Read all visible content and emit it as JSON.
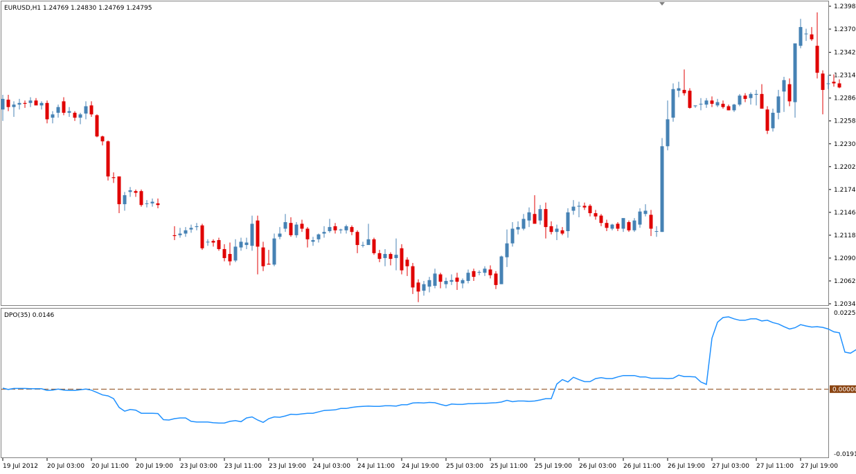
{
  "colors": {
    "background": "#ffffff",
    "frame": "#808080",
    "bull": "#4682b4",
    "bear": "#e00000",
    "dpo_line": "#1e90ff",
    "zero_line": "#8b4513",
    "zero_badge": "#8b4513"
  },
  "chart_data": [
    {
      "type": "candlestick",
      "title": "EURUSD,H1  1.24769 1.24830 1.24769 1.24795",
      "symbol": "EURUSD,H1",
      "ohlc_header": "1.24769 1.24830 1.24769 1.24795",
      "ylim": [
        1.2034,
        1.23985
      ],
      "y_ticks": [
        "1.23985",
        "1.23705",
        "1.23420",
        "1.23140",
        "1.22860",
        "1.22580",
        "1.22300",
        "1.22020",
        "1.21740",
        "1.21460",
        "1.21180",
        "1.20900",
        "1.20620",
        "1.20340"
      ],
      "grid": false,
      "candles": [
        [
          1.2272,
          1.229,
          1.2258,
          1.2285
        ],
        [
          1.2284,
          1.229,
          1.227,
          1.2275
        ],
        [
          1.2275,
          1.2282,
          1.2263,
          1.2278
        ],
        [
          1.2278,
          1.2285,
          1.2272,
          1.228
        ],
        [
          1.228,
          1.2283,
          1.2274,
          1.2279
        ],
        [
          1.228,
          1.2287,
          1.2275,
          1.2283
        ],
        [
          1.2283,
          1.2286,
          1.2278,
          1.2277
        ],
        [
          1.2277,
          1.2282,
          1.2272,
          1.228
        ],
        [
          1.228,
          1.2283,
          1.2255,
          1.226
        ],
        [
          1.2262,
          1.227,
          1.2255,
          1.2266
        ],
        [
          1.2268,
          1.2278,
          1.2262,
          1.2275
        ],
        [
          1.2282,
          1.2287,
          1.2265,
          1.2268
        ],
        [
          1.2268,
          1.2275,
          1.2263,
          1.227
        ],
        [
          1.2268,
          1.227,
          1.2258,
          1.2262
        ],
        [
          1.2262,
          1.2268,
          1.2254,
          1.2266
        ],
        [
          1.2267,
          1.2282,
          1.226,
          1.2276
        ],
        [
          1.2277,
          1.2282,
          1.2263,
          1.2266
        ],
        [
          1.2265,
          1.2266,
          1.2238,
          1.2239
        ],
        [
          1.2239,
          1.224,
          1.2228,
          1.2233
        ],
        [
          1.2233,
          1.2234,
          1.2185,
          1.219
        ],
        [
          1.2189,
          1.2195,
          1.2182,
          1.2188
        ],
        [
          1.219,
          1.219,
          1.2145,
          1.2156
        ],
        [
          1.2156,
          1.2171,
          1.2148,
          1.2167
        ],
        [
          1.2171,
          1.2177,
          1.2165,
          1.2173
        ],
        [
          1.2172,
          1.2174,
          1.2165,
          1.217
        ],
        [
          1.2172,
          1.2174,
          1.2153,
          1.2155
        ],
        [
          1.2157,
          1.2161,
          1.2152,
          1.2157
        ],
        [
          1.2157,
          1.2163,
          1.2153,
          1.2159
        ],
        [
          1.2157,
          1.2163,
          1.2151,
          1.2155
        ],
        null,
        null,
        [
          1.2118,
          1.2129,
          1.2112,
          1.2117
        ],
        [
          1.2118,
          1.2127,
          1.2115,
          1.212
        ],
        [
          1.212,
          1.2128,
          1.2116,
          1.2124
        ],
        [
          1.2125,
          1.2131,
          1.2121,
          1.2127
        ],
        [
          1.2128,
          1.2133,
          1.2124,
          1.2129
        ],
        [
          1.213,
          1.2132,
          1.21,
          1.2102
        ],
        [
          1.211,
          1.2113,
          1.2105,
          1.211
        ],
        [
          1.2111,
          1.2113,
          1.2104,
          1.2109
        ],
        [
          1.2112,
          1.2115,
          1.2099,
          1.2101
        ],
        [
          1.2101,
          1.2107,
          1.2086,
          1.209
        ],
        [
          1.2095,
          1.2109,
          1.2081,
          1.2086
        ],
        [
          1.2087,
          1.2113,
          1.2085,
          1.2104
        ],
        [
          1.2103,
          1.2115,
          1.2099,
          1.211
        ],
        [
          1.2106,
          1.2115,
          1.2101,
          1.2109
        ],
        [
          1.2105,
          1.2142,
          1.2099,
          1.2132
        ],
        [
          1.2136,
          1.2142,
          1.207,
          1.2104
        ],
        [
          1.2103,
          1.211,
          1.2074,
          1.208
        ],
        [
          1.2083,
          1.21,
          1.2082,
          1.2082
        ],
        [
          1.2082,
          1.212,
          1.208,
          1.2114
        ],
        [
          1.2116,
          1.2128,
          1.2113,
          1.212
        ],
        [
          1.2126,
          1.2144,
          1.2122,
          1.2134
        ],
        [
          1.2133,
          1.214,
          1.2116,
          1.2118
        ],
        [
          1.2118,
          1.2134,
          1.2115,
          1.2131
        ],
        [
          1.2132,
          1.2137,
          1.2122,
          1.2126
        ],
        [
          1.2126,
          1.2128,
          1.2103,
          1.2113
        ],
        [
          1.211,
          1.2116,
          1.2105,
          1.2112
        ],
        [
          1.2113,
          1.212,
          1.2109,
          1.2119
        ],
        [
          1.212,
          1.2129,
          1.2115,
          1.2122
        ],
        [
          1.2123,
          1.2138,
          1.2121,
          1.2128
        ],
        [
          1.2129,
          1.2133,
          1.212,
          1.2124
        ],
        [
          1.2124,
          1.2126,
          1.212,
          1.2125
        ],
        [
          1.2124,
          1.2131,
          1.212,
          1.2129
        ],
        [
          1.2128,
          1.213,
          1.2118,
          1.2122
        ],
        [
          1.2122,
          1.2124,
          1.2096,
          1.2106
        ],
        [
          1.2106,
          1.211,
          1.2103,
          1.2106
        ],
        [
          1.2106,
          1.2132,
          1.2106,
          1.2113
        ],
        [
          1.2113,
          1.2115,
          1.2094,
          1.2096
        ],
        [
          1.2096,
          1.21,
          1.2085,
          1.2089
        ],
        [
          1.209,
          1.2101,
          1.208,
          1.2095
        ],
        [
          1.2095,
          1.2097,
          1.2081,
          1.2089
        ],
        [
          1.209,
          1.2114,
          1.2075,
          1.2094
        ],
        [
          1.2102,
          1.2107,
          1.207,
          1.2075
        ],
        [
          1.2088,
          1.2091,
          1.2068,
          1.208
        ],
        [
          1.208,
          1.2084,
          1.2046,
          1.2054
        ],
        [
          1.206,
          1.2064,
          1.2036,
          1.2049
        ],
        [
          1.205,
          1.2062,
          1.2044,
          1.2058
        ],
        [
          1.2055,
          1.2067,
          1.2048,
          1.2063
        ],
        [
          1.2056,
          1.2077,
          1.2053,
          1.2071
        ],
        [
          1.207,
          1.2072,
          1.2053,
          1.2061
        ],
        [
          1.2058,
          1.2066,
          1.2053,
          1.2062
        ],
        [
          1.2061,
          1.207,
          1.2057,
          1.2063
        ],
        [
          1.2066,
          1.2072,
          1.2051,
          1.2061
        ],
        [
          1.2059,
          1.2065,
          1.2053,
          1.2063
        ],
        [
          1.2062,
          1.2076,
          1.2059,
          1.2072
        ],
        [
          1.2074,
          1.2077,
          1.2062,
          1.2067
        ],
        [
          1.2073,
          1.2075,
          1.2069,
          1.2073
        ],
        [
          1.2072,
          1.208,
          1.2068,
          1.2077
        ],
        [
          1.2076,
          1.2081,
          1.2065,
          1.2069
        ],
        [
          1.2071,
          1.2074,
          1.2052,
          1.2057
        ],
        [
          1.2058,
          1.2093,
          1.2058,
          1.2092
        ],
        [
          1.2091,
          1.2125,
          1.2079,
          1.2108
        ],
        [
          1.2108,
          1.2134,
          1.2104,
          1.2126
        ],
        [
          1.2125,
          1.2135,
          1.2119,
          1.2128
        ],
        [
          1.2126,
          1.2144,
          1.2124,
          1.2138
        ],
        [
          1.2136,
          1.2152,
          1.2128,
          1.2146
        ],
        [
          1.2144,
          1.2167,
          1.2133,
          1.2132
        ],
        [
          1.2136,
          1.2155,
          1.2131,
          1.215
        ],
        [
          1.215,
          1.2158,
          1.2114,
          1.2128
        ],
        [
          1.2129,
          1.2135,
          1.2119,
          1.2122
        ],
        [
          1.2122,
          1.2131,
          1.2112,
          1.2126
        ],
        [
          1.2124,
          1.2128,
          1.2118,
          1.212
        ],
        [
          1.2123,
          1.2151,
          1.2115,
          1.2146
        ],
        [
          1.2148,
          1.2161,
          1.2143,
          1.2153
        ],
        [
          1.2153,
          1.2159,
          1.214,
          1.2154
        ],
        [
          1.2154,
          1.2158,
          1.2149,
          1.2152
        ],
        [
          1.2154,
          1.2156,
          1.2141,
          1.2145
        ],
        [
          1.2145,
          1.2149,
          1.2137,
          1.2141
        ],
        [
          1.2142,
          1.2144,
          1.2129,
          1.2133
        ],
        [
          1.2133,
          1.2137,
          1.2123,
          1.2127
        ],
        [
          1.2126,
          1.2132,
          1.2124,
          1.2131
        ],
        [
          1.2132,
          1.2134,
          1.2123,
          1.2126
        ],
        [
          1.2126,
          1.2138,
          1.2122,
          1.2139
        ],
        [
          1.2134,
          1.2136,
          1.2122,
          1.2124
        ],
        [
          1.2124,
          1.2139,
          1.2122,
          1.2136
        ],
        [
          1.2131,
          1.2151,
          1.2127,
          1.2147
        ],
        [
          1.2144,
          1.2156,
          1.2141,
          1.2148
        ],
        [
          1.2143,
          1.2149,
          1.2117,
          1.2126
        ],
        [
          1.2123,
          1.2129,
          1.2116,
          1.2123
        ],
        [
          1.2122,
          1.2237,
          1.2122,
          1.2227
        ],
        [
          1.2227,
          1.2283,
          1.2222,
          1.226
        ],
        [
          1.2262,
          1.2304,
          1.2257,
          1.2297
        ],
        [
          1.2295,
          1.2306,
          1.2287,
          1.2298
        ],
        [
          1.2296,
          1.2321,
          1.2289,
          1.2292
        ],
        [
          1.2295,
          1.2298,
          1.2273,
          1.2274
        ],
        [
          1.2276,
          1.2277,
          1.2274,
          1.2277
        ],
        [
          1.2279,
          1.2286,
          1.2271,
          1.2279
        ],
        [
          1.2278,
          1.2286,
          1.2274,
          1.2283
        ],
        [
          1.2283,
          1.2288,
          1.2275,
          1.2279
        ],
        [
          1.2277,
          1.2285,
          1.2275,
          1.2281
        ],
        [
          1.2279,
          1.2283,
          1.2273,
          1.2275
        ],
        [
          1.2276,
          1.2278,
          1.2271,
          1.2271
        ],
        [
          1.2271,
          1.2279,
          1.2269,
          1.2278
        ],
        [
          1.2278,
          1.2291,
          1.2276,
          1.2289
        ],
        [
          1.2289,
          1.2292,
          1.2281,
          1.2285
        ],
        [
          1.2286,
          1.2293,
          1.2278,
          1.2291
        ],
        [
          1.229,
          1.2296,
          1.2277,
          1.2291
        ],
        [
          1.2291,
          1.2303,
          1.228,
          1.2273
        ],
        [
          1.2272,
          1.2276,
          1.2242,
          1.2246
        ],
        [
          1.2249,
          1.2273,
          1.2245,
          1.2268
        ],
        [
          1.2268,
          1.2296,
          1.226,
          1.2288
        ],
        [
          1.2294,
          1.2312,
          1.2269,
          1.2308
        ],
        [
          1.2303,
          1.231,
          1.2276,
          1.2282
        ],
        [
          1.2281,
          1.2318,
          1.2262,
          1.2353
        ],
        [
          1.235,
          1.2383,
          1.2347,
          1.2373
        ],
        [
          1.2365,
          1.2371,
          1.2356,
          1.2365
        ],
        [
          1.2364,
          1.2373,
          1.2356,
          1.2358
        ],
        [
          1.235,
          1.2391,
          1.231,
          1.2317
        ],
        [
          1.2316,
          1.232,
          1.2266,
          1.2296
        ],
        [
          1.2304,
          1.2314,
          1.2297,
          1.2304
        ],
        [
          1.2306,
          1.2315,
          1.23,
          1.2304
        ],
        [
          1.2304,
          1.2309,
          1.2298,
          1.2299
        ]
      ]
    },
    {
      "type": "line",
      "title": "DPO(35) 0.0146",
      "indicator": "DPO(35)",
      "current_value": "0.0146",
      "ylim": [
        -0.0191,
        0.0225
      ],
      "y_ticks": [
        "0.0225",
        "-0.0191"
      ],
      "zero_label": "0.00000",
      "zero_value": 0,
      "series": [
        {
          "values": [
            0.0003,
            -0.0001,
            0.0002,
            0.0002,
            0.0002,
            0.0001,
            0.0001,
            0.0001,
            -0.0004,
            -0.0003,
            0.0,
            -0.0003,
            -0.0004,
            -0.0004,
            -0.0002,
            0.0,
            -0.0003,
            -0.001,
            -0.0017,
            -0.002,
            -0.0028,
            -0.0054,
            -0.0065,
            -0.006,
            -0.0062,
            -0.0071,
            -0.0071,
            -0.0071,
            -0.0072,
            -0.009,
            -0.0091,
            -0.0087,
            -0.0085,
            -0.0085,
            -0.0095,
            -0.0097,
            -0.0097,
            -0.0097,
            -0.0099,
            -0.01,
            -0.01,
            -0.0095,
            -0.0093,
            -0.0096,
            -0.0085,
            -0.0082,
            -0.0091,
            -0.0098,
            -0.0087,
            -0.0082,
            -0.0083,
            -0.0079,
            -0.0074,
            -0.0075,
            -0.0073,
            -0.0071,
            -0.0071,
            -0.0067,
            -0.0063,
            -0.0062,
            -0.0061,
            -0.0057,
            -0.0057,
            -0.0054,
            -0.0052,
            -0.0051,
            -0.005,
            -0.0051,
            -0.0051,
            -0.0049,
            -0.0049,
            -0.005,
            -0.0046,
            -0.0046,
            -0.0041,
            -0.004,
            -0.0041,
            -0.0039,
            -0.004,
            -0.0045,
            -0.0049,
            -0.0044,
            -0.0045,
            -0.0045,
            -0.0043,
            -0.0043,
            -0.0042,
            -0.0042,
            -0.0041,
            -0.004,
            -0.0038,
            -0.0033,
            -0.0037,
            -0.0035,
            -0.0035,
            -0.0036,
            -0.0035,
            -0.0032,
            -0.0028,
            -0.0028,
            0.0015,
            0.0028,
            0.0021,
            0.0035,
            0.0028,
            0.0022,
            0.0022,
            0.0031,
            0.0034,
            0.0031,
            0.0031,
            0.0036,
            0.004,
            0.004,
            0.004,
            0.0036,
            0.0036,
            0.0032,
            0.0032,
            0.0032,
            0.0031,
            0.0032,
            0.0041,
            0.0037,
            0.0037,
            0.0036,
            0.0021,
            0.0014,
            0.015,
            0.0197,
            0.0211,
            0.0213,
            0.0207,
            0.0203,
            0.0203,
            0.0207,
            0.0207,
            0.0201,
            0.0203,
            0.0196,
            0.0192,
            0.0184,
            0.0177,
            0.0181,
            0.019,
            0.0186,
            0.0183,
            0.0184,
            0.0182,
            0.0177,
            0.0169,
            0.0166,
            0.0109,
            0.0106,
            0.0116,
            0.011,
            0.0173,
            0.0181,
            0.0173,
            0.0167,
            0.0143,
            0.013,
            0.0123,
            0.0118,
            0.011,
            0.0112,
            0.012,
            0.0107,
            0.0101,
            0.0097,
            0.0091,
            0.0083
          ]
        }
      ]
    }
  ],
  "x_axis": {
    "tick_labels": [
      "19 Jul 2012",
      "20 Jul 03:00",
      "20 Jul 11:00",
      "20 Jul 19:00",
      "23 Jul 03:00",
      "23 Jul 11:00",
      "23 Jul 19:00",
      "24 Jul 03:00",
      "24 Jul 11:00",
      "24 Jul 19:00",
      "25 Jul 03:00",
      "25 Jul 11:00",
      "25 Jul 19:00",
      "26 Jul 03:00",
      "26 Jul 11:00",
      "26 Jul 19:00",
      "27 Jul 03:00",
      "27 Jul 11:00",
      "27 Jul 19:00"
    ]
  }
}
